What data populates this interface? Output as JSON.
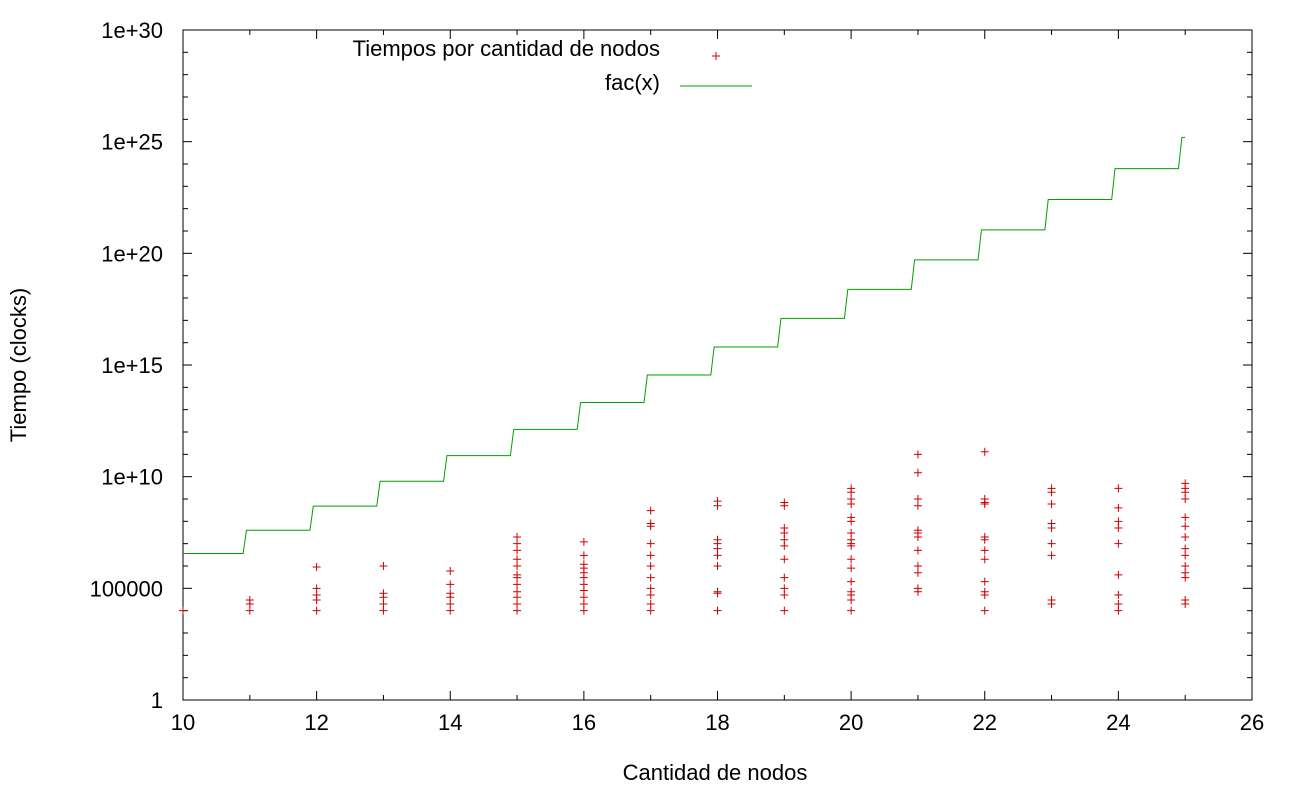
{
  "chart_data": {
    "type": "scatter",
    "xlabel": "Cantidad de nodos",
    "ylabel": "Tiempo (clocks)",
    "xlim": [
      10,
      26
    ],
    "ylim": [
      1,
      1e+30
    ],
    "yscale": "log",
    "grid": false,
    "legend_position": "top",
    "xticks": [
      10,
      12,
      14,
      16,
      18,
      20,
      22,
      24,
      26
    ],
    "xtick_labels": [
      "10",
      "12",
      "14",
      "16",
      "18",
      "20",
      "22",
      "24",
      "26"
    ],
    "yticks": [
      1,
      100000,
      10000000000.0,
      1000000000000000.0,
      1e+20,
      1e+25,
      1e+30
    ],
    "ytick_labels": [
      "1",
      "100000",
      "1e+10",
      "1e+15",
      "1e+20",
      "1e+25",
      "1e+30"
    ],
    "series": [
      {
        "name": "Tiempos por cantidad de nodos",
        "kind": "points",
        "marker": "+",
        "color": "#d00000",
        "points": [
          [
            10,
            10000
          ],
          [
            11,
            10000
          ],
          [
            11,
            20000
          ],
          [
            11,
            30000
          ],
          [
            12,
            10000
          ],
          [
            12,
            30000
          ],
          [
            12,
            50000
          ],
          [
            12,
            100000
          ],
          [
            12,
            900000
          ],
          [
            13,
            10000
          ],
          [
            13,
            20000
          ],
          [
            13,
            40000
          ],
          [
            13,
            60000
          ],
          [
            13,
            1000000
          ],
          [
            14,
            10000
          ],
          [
            14,
            20000
          ],
          [
            14,
            40000
          ],
          [
            14,
            60000
          ],
          [
            14,
            150000
          ],
          [
            14,
            600000
          ],
          [
            15,
            10000
          ],
          [
            15,
            20000
          ],
          [
            15,
            40000
          ],
          [
            15,
            70000
          ],
          [
            15,
            150000
          ],
          [
            15,
            300000
          ],
          [
            15,
            400000
          ],
          [
            15,
            1000000
          ],
          [
            15,
            2000000
          ],
          [
            15,
            5000000
          ],
          [
            15,
            10000000
          ],
          [
            15,
            20000000
          ],
          [
            16,
            10000
          ],
          [
            16,
            20000
          ],
          [
            16,
            40000
          ],
          [
            16,
            80000
          ],
          [
            16,
            150000
          ],
          [
            16,
            300000
          ],
          [
            16,
            500000
          ],
          [
            16,
            800000
          ],
          [
            16,
            1200000
          ],
          [
            16,
            3000000
          ],
          [
            16,
            12000000
          ],
          [
            17,
            10000
          ],
          [
            17,
            20000
          ],
          [
            17,
            50000
          ],
          [
            17,
            100000
          ],
          [
            17,
            300000
          ],
          [
            17,
            1000000
          ],
          [
            17,
            3000000
          ],
          [
            17,
            10000000
          ],
          [
            17,
            60000000
          ],
          [
            17,
            80000000
          ],
          [
            17,
            300000000
          ],
          [
            18,
            10000
          ],
          [
            18,
            60000
          ],
          [
            18,
            70000
          ],
          [
            18,
            1000000
          ],
          [
            18,
            3000000
          ],
          [
            18,
            6000000
          ],
          [
            18,
            10000000
          ],
          [
            18,
            15000000
          ],
          [
            18,
            500000000
          ],
          [
            18,
            800000000
          ],
          [
            19,
            10000
          ],
          [
            19,
            50000
          ],
          [
            19,
            100000
          ],
          [
            19,
            300000
          ],
          [
            19,
            2000000
          ],
          [
            19,
            8000000
          ],
          [
            19,
            15000000
          ],
          [
            19,
            30000000
          ],
          [
            19,
            50000000
          ],
          [
            19,
            500000000
          ],
          [
            19,
            700000000
          ],
          [
            20,
            10000
          ],
          [
            20,
            30000
          ],
          [
            20,
            50000
          ],
          [
            20,
            70000
          ],
          [
            20,
            200000
          ],
          [
            20,
            800000
          ],
          [
            20,
            2000000
          ],
          [
            20,
            8000000
          ],
          [
            20,
            10000000
          ],
          [
            20,
            15000000
          ],
          [
            20,
            30000000
          ],
          [
            20,
            100000000
          ],
          [
            20,
            150000000
          ],
          [
            20,
            600000000
          ],
          [
            20,
            1000000000
          ],
          [
            20,
            2000000000
          ],
          [
            20,
            3000000000
          ],
          [
            21,
            70000
          ],
          [
            21,
            100000
          ],
          [
            21,
            500000
          ],
          [
            21,
            1000000
          ],
          [
            21,
            5000000
          ],
          [
            21,
            20000000
          ],
          [
            21,
            30000000
          ],
          [
            21,
            40000000
          ],
          [
            21,
            500000000
          ],
          [
            21,
            1000000000
          ],
          [
            21,
            100000000000
          ],
          [
            21,
            15000000000
          ],
          [
            22,
            10000
          ],
          [
            22,
            50000
          ],
          [
            22,
            70000
          ],
          [
            22,
            200000
          ],
          [
            22,
            2000000
          ],
          [
            22,
            5000000
          ],
          [
            22,
            15000000
          ],
          [
            22,
            20000000
          ],
          [
            22,
            600000000
          ],
          [
            22,
            700000000
          ],
          [
            22,
            1000000000
          ],
          [
            22,
            130000000000
          ],
          [
            23,
            20000
          ],
          [
            23,
            30000
          ],
          [
            23,
            3000000
          ],
          [
            23,
            10000000
          ],
          [
            23,
            50000000
          ],
          [
            23,
            80000000
          ],
          [
            23,
            600000000
          ],
          [
            23,
            2000000000
          ],
          [
            23,
            3000000000
          ],
          [
            24,
            10000
          ],
          [
            24,
            20000
          ],
          [
            24,
            50000
          ],
          [
            24,
            400000
          ],
          [
            24,
            10000000
          ],
          [
            24,
            50000000
          ],
          [
            24,
            100000000
          ],
          [
            24,
            400000000
          ],
          [
            24,
            3000000000
          ],
          [
            25,
            20000
          ],
          [
            25,
            30000
          ],
          [
            25,
            300000
          ],
          [
            25,
            500000
          ],
          [
            25,
            1000000
          ],
          [
            25,
            3000000
          ],
          [
            25,
            6000000
          ],
          [
            25,
            20000000
          ],
          [
            25,
            60000000
          ],
          [
            25,
            150000000
          ],
          [
            25,
            1000000000
          ],
          [
            25,
            2000000000
          ],
          [
            25,
            3000000000
          ],
          [
            25,
            5000000000
          ]
        ]
      },
      {
        "name": "fac(x)",
        "kind": "step-line",
        "color": "#00a000",
        "x": [
          10,
          11,
          12,
          13,
          14,
          15,
          16,
          17,
          18,
          19,
          20,
          21,
          22,
          23,
          24,
          25
        ],
        "y": [
          3628800,
          39916800,
          479001600,
          6227020800,
          87178291200,
          1307674368000,
          20922789888000,
          355687428096000,
          6402373705728000,
          121645100408832000,
          2432902008176640000,
          51090942171709440000,
          1.1240007277776077e+21,
          2.585201673888498e+22,
          6.204484017332394e+23,
          1.5511210043330986e+25
        ]
      }
    ]
  }
}
